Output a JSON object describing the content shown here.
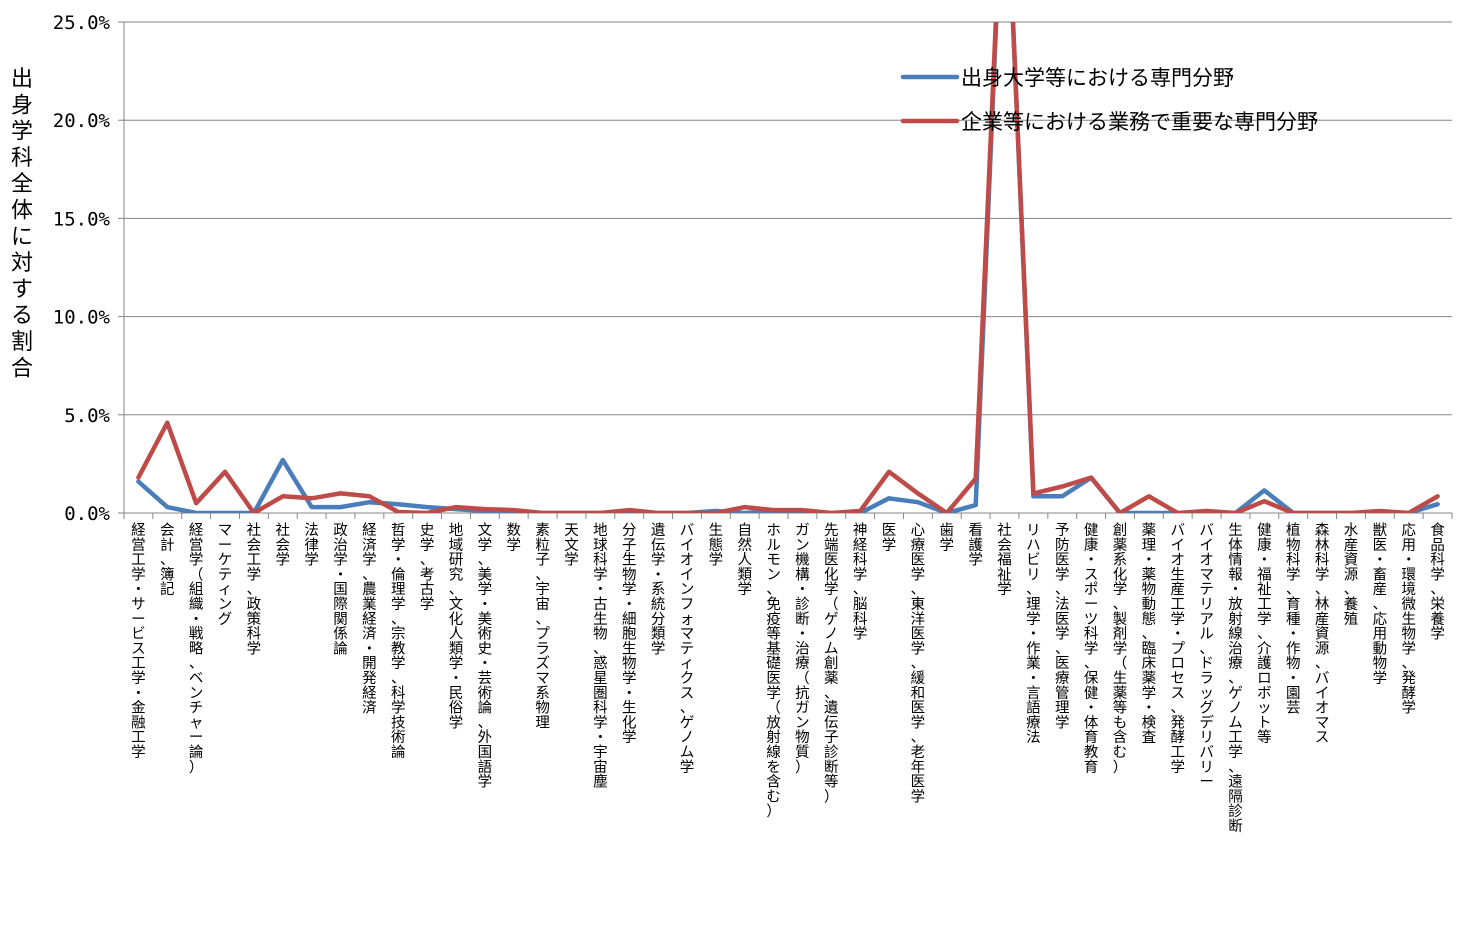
{
  "chart_data": {
    "type": "line",
    "ylabel": "出身学科全体に対する割合",
    "ylim": [
      0,
      25
    ],
    "yticks": [
      "0.0%",
      "5.0%",
      "10.0%",
      "15.0%",
      "20.0%",
      "25.0%"
    ],
    "ytick_values": [
      0,
      5,
      10,
      15,
      20,
      25
    ],
    "legend_position": "top-right",
    "categories": [
      "経営工学・サービス工学・金融工学",
      "会計、簿記",
      "経営学（組織・戦略、ベンチャー論）",
      "マーケティング",
      "社会工学、政策科学",
      "社会学",
      "法律学",
      "政治学・国際関係論",
      "経済学、農業経済・開発経済",
      "哲学・倫理学、宗教学、科学技術論",
      "史学、考古学",
      "地域研究、文化人類学・民俗学",
      "文学、美学・美術史・芸術論、外国語学",
      "数学",
      "素粒子、宇宙、プラズマ系物理",
      "天文学",
      "地球科学・古生物、惑星圏科学・宇宙塵",
      "分子生物学・細胞生物学・生化学",
      "遺伝学・系統分類学",
      "バイオインフォマティクス、ゲノム学",
      "生態学",
      "自然人類学",
      "ホルモン、免疫等基礎医学（放射線を含む）",
      "ガン機構・診断・治療（抗ガン物質）",
      "先端医化学（ゲノム創薬、遺伝子診断等）",
      "神経科学、脳科学",
      "医学",
      "心療医学、東洋医学、緩和医学、老年医学",
      "歯学",
      "看護学",
      "社会福祉学",
      "リハビリ、理学・作業・言語療法",
      "予防医学、法医学、医療管理学",
      "健康・スポーツ科学、保健・体育教育",
      "創薬系化学、製剤学（生薬等も含む）",
      "薬理・薬物動態、臨床薬学・検査",
      "バイオ生産工学・プロセス、発酵工学",
      "バイオマテリアル、ドラッグデリバリー",
      "生体情報・放射線治療、ゲノム工学、遠隔診断",
      "健康・福祉工学、介護ロボット等",
      "植物科学、育種・作物・園芸",
      "森林科学、林産資源、バイオマス",
      "水産資源、養殖",
      "獣医・畜産、応用動物学",
      "応用・環境微生物学、発酵学",
      "食品科学、栄養学"
    ],
    "series": [
      {
        "name": "出身大学等における専門分野",
        "color": "#4a7ebb",
        "values": [
          1.6,
          0.3,
          0.0,
          0.0,
          0.0,
          2.7,
          0.3,
          0.3,
          0.55,
          0.45,
          0.3,
          0.2,
          0.1,
          0.1,
          0.0,
          0.0,
          0.0,
          0.0,
          0.0,
          0.0,
          0.1,
          0.0,
          0.1,
          0.1,
          0.0,
          0.0,
          0.75,
          0.55,
          0.0,
          0.4,
          35.0,
          0.85,
          0.85,
          1.8,
          0.0,
          0.0,
          0.0,
          0.0,
          0.0,
          1.15,
          0.0,
          0.0,
          0.0,
          0.0,
          0.0,
          0.45
        ]
      },
      {
        "name": "企業等における業務で重要な専門分野",
        "color": "#be4b48",
        "values": [
          1.8,
          4.6,
          0.5,
          2.1,
          0.0,
          0.85,
          0.75,
          1.0,
          0.85,
          0.05,
          0.0,
          0.3,
          0.2,
          0.15,
          0.0,
          0.0,
          0.0,
          0.15,
          0.0,
          0.0,
          0.0,
          0.3,
          0.15,
          0.15,
          0.0,
          0.1,
          2.1,
          1.0,
          0.0,
          1.75,
          35.0,
          1.0,
          1.35,
          1.8,
          0.0,
          0.85,
          0.0,
          0.1,
          0.0,
          0.6,
          0.0,
          0.0,
          0.0,
          0.1,
          0.0,
          0.85
        ]
      }
    ]
  }
}
